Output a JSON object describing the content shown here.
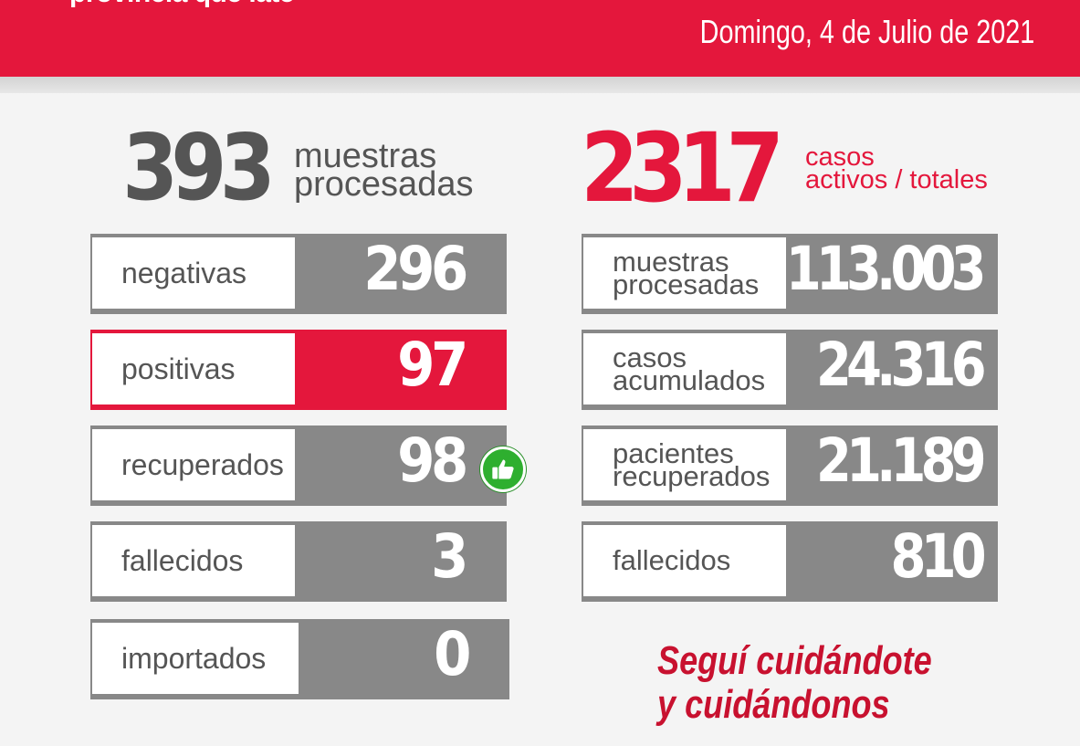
{
  "header": {
    "tagline": "provincia que late",
    "date": "Domingo, 4 de Julio de 2021",
    "background_color": "#e4173c"
  },
  "daily": {
    "samples_value": "393",
    "samples_caption_line1": "muestras",
    "samples_caption_line2": "procesadas",
    "rows": [
      {
        "label": "negativas",
        "value": "296",
        "color": "#888888"
      },
      {
        "label": "positivas",
        "value": "97",
        "color": "#e4173c"
      },
      {
        "label": "recuperados",
        "value": "98",
        "color": "#888888",
        "icon": "thumbs-up-icon"
      },
      {
        "label": "fallecidos",
        "value": "3",
        "color": "#888888"
      },
      {
        "label": "importados",
        "value": "0",
        "color": "#888888"
      }
    ]
  },
  "totals": {
    "active_value": "2317",
    "active_caption_line1": "casos",
    "active_caption_line2": "activos / totales",
    "rows": [
      {
        "label": "muestras\nprocesadas",
        "value": "113.003"
      },
      {
        "label": "casos\nacumulados",
        "value": "24.316"
      },
      {
        "label": "pacientes\nrecuperados",
        "value": "21.189"
      },
      {
        "label": "fallecidos",
        "value": "810"
      }
    ]
  },
  "slogan": "Seguí cuidándote\ny cuidándonos",
  "colors": {
    "accent_red": "#e4173c",
    "slogan_red": "#c8112f",
    "box_gray": "#888888",
    "big_number_gray": "#555555",
    "thumb_green": "#2eaf2f"
  }
}
